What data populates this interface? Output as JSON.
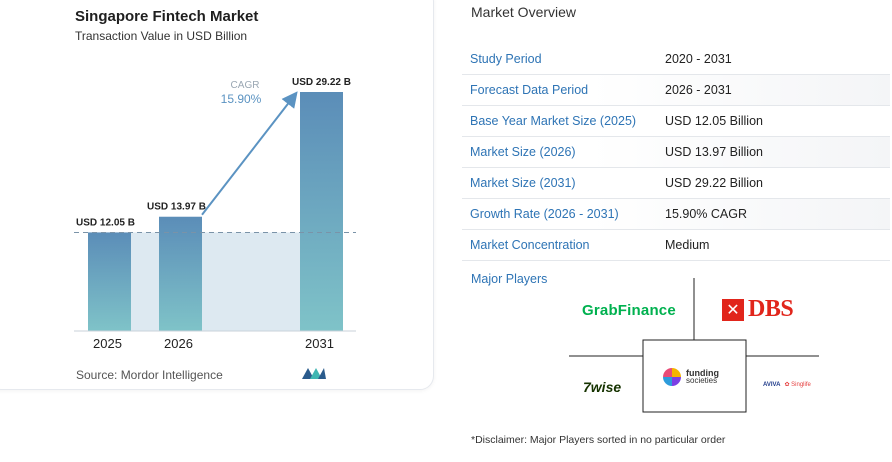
{
  "chart_card": {
    "title": "Singapore Fintech Market",
    "subtitle": "Transaction Value in USD Billion",
    "source": "Source:  Mordor Intelligence",
    "cagr_label": "CAGR",
    "cagr_value": "15.90%",
    "colors": {
      "bar_top": "#5b8db8",
      "bar_bottom": "#7fc3c8",
      "band": "#dde9f1",
      "arrow": "#5b93c2"
    }
  },
  "chart_data": {
    "type": "bar",
    "title": "Singapore Fintech Market",
    "subtitle": "Transaction Value in USD Billion",
    "categories": [
      "2025",
      "2026",
      "2031"
    ],
    "values": [
      12.05,
      13.97,
      29.22
    ],
    "data_labels": [
      "USD 12.05 B",
      "USD 13.97 B",
      "USD 29.22 B"
    ],
    "annotation": {
      "text": "CAGR",
      "value": "15.90%"
    },
    "ylim": [
      0,
      29.22
    ]
  },
  "overview": {
    "title": "Market Overview",
    "rows": [
      {
        "key": "Study Period",
        "value": "2020 - 2031"
      },
      {
        "key": "Forecast Data Period",
        "value": "2026 - 2031"
      },
      {
        "key": "Base Year Market Size (2025)",
        "value": "USD 12.05 Billion"
      },
      {
        "key": "Market Size (2026)",
        "value": "USD 13.97 Billion"
      },
      {
        "key": "Market Size (2031)",
        "value": "USD 29.22 Billion"
      },
      {
        "key": "Growth Rate (2026 - 2031)",
        "value": "15.90% CAGR"
      },
      {
        "key": "Market Concentration",
        "value": "Medium"
      }
    ],
    "players_label": "Major Players",
    "players": {
      "grab": "GrabFinance",
      "dbs_mark": "✕",
      "dbs": "DBS",
      "wise": "7wise",
      "funding_1": "funding",
      "funding_2": "societies",
      "aviva": "AVIVA",
      "singlife": "✿ Singlife"
    },
    "disclaimer": "*Disclaimer: Major Players sorted in no particular order"
  }
}
